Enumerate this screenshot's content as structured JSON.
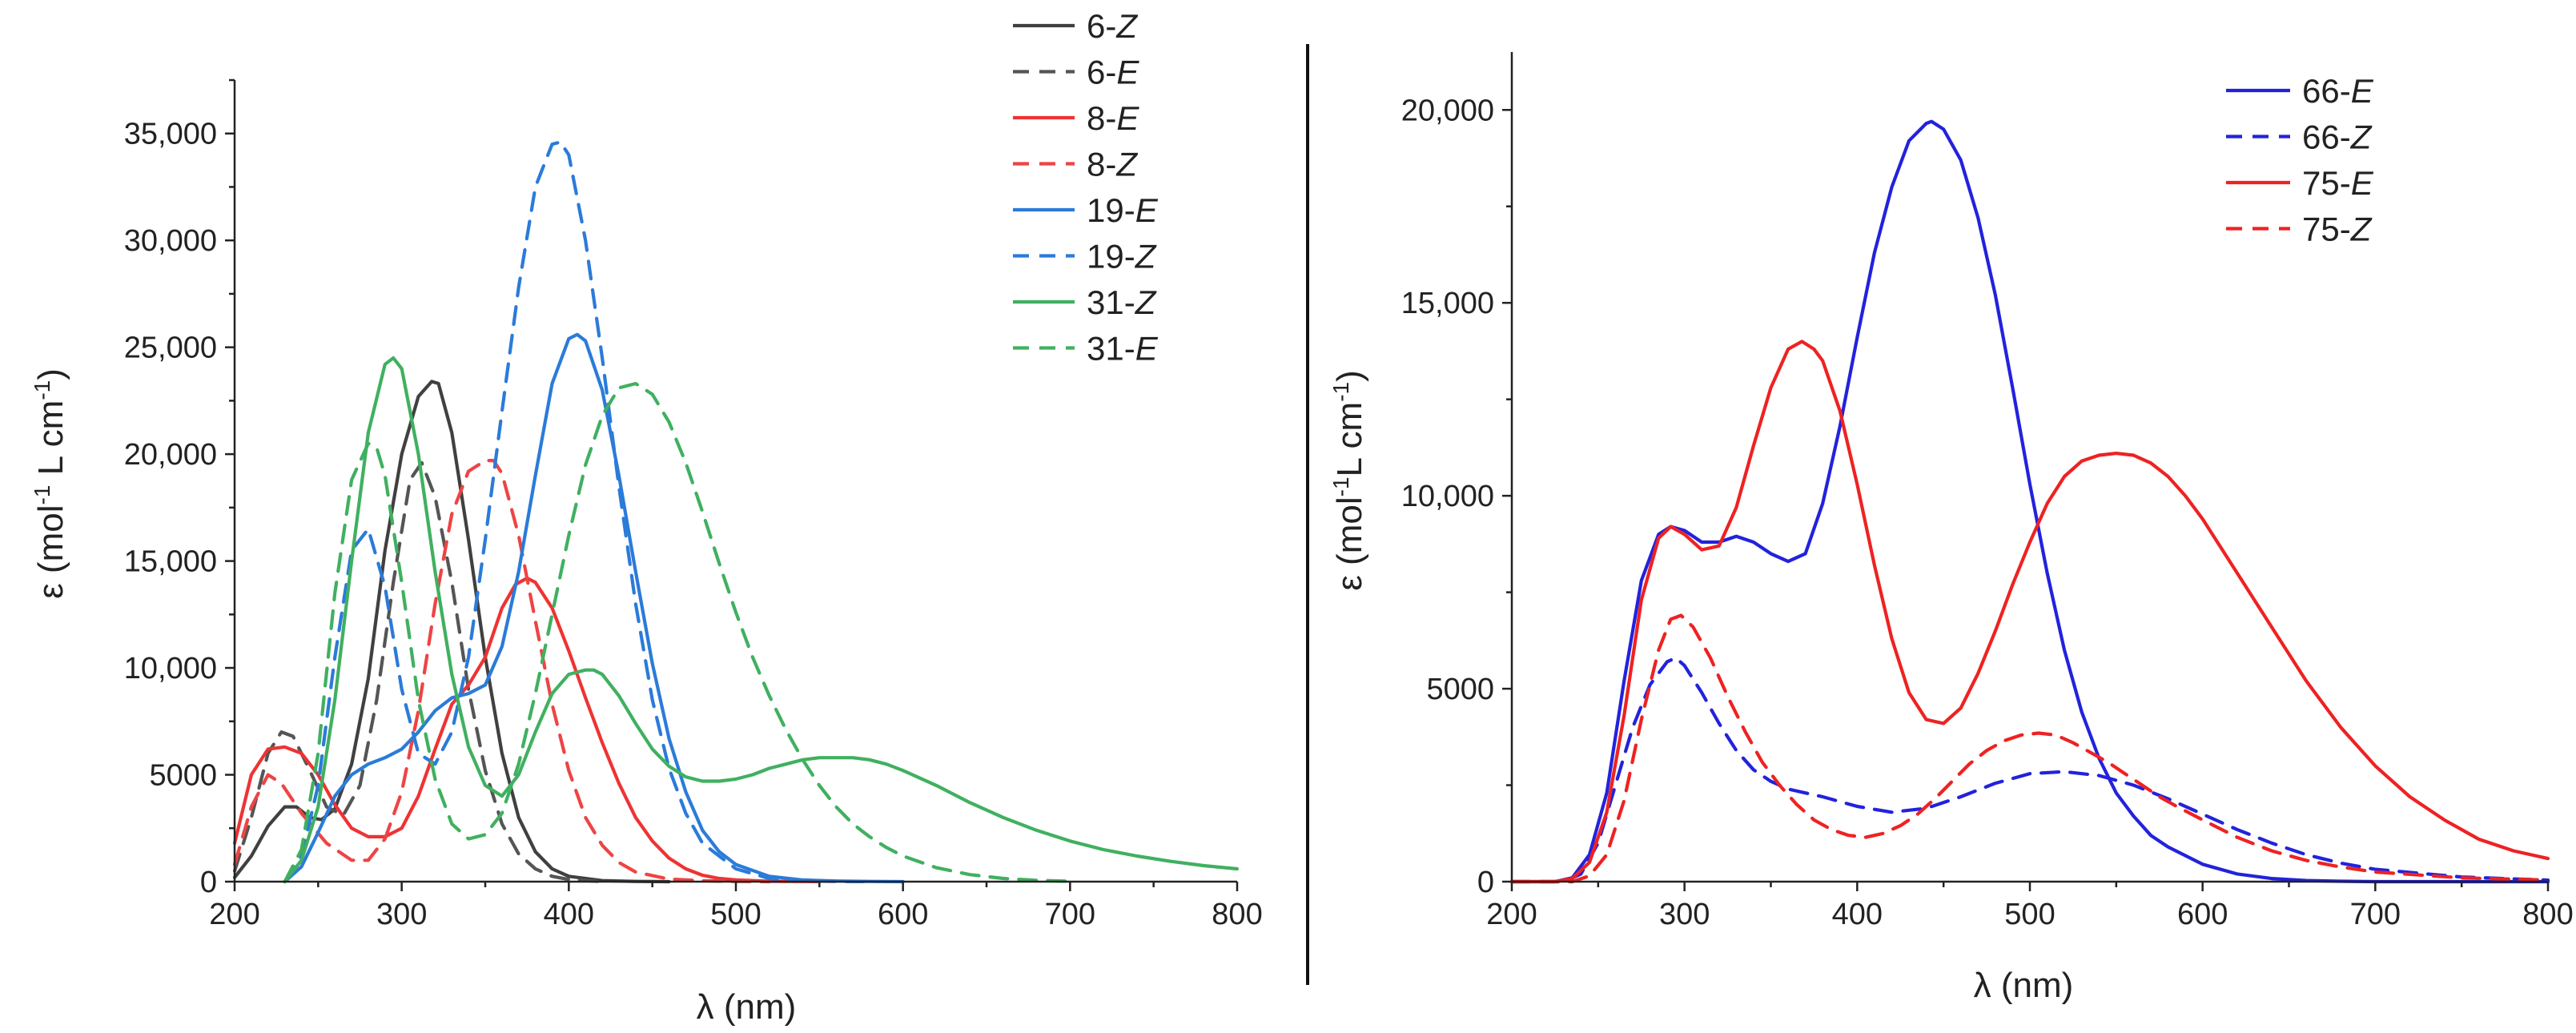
{
  "chart_data": [
    {
      "type": "line",
      "id": "left",
      "xlabel": "λ (nm)",
      "ylabel_parts": {
        "pre": "ε (mol",
        "sup1": "-1",
        "mid": " L cm",
        "sup2": "-1",
        "post": ")"
      },
      "xlim": [
        200,
        800
      ],
      "ylim": [
        0,
        37500
      ],
      "xticks": [
        200,
        300,
        400,
        500,
        600,
        700,
        800
      ],
      "xtick_labels": [
        "200",
        "300",
        "400",
        "500",
        "600",
        "700",
        "800"
      ],
      "yticks": [
        0,
        5000,
        10000,
        15000,
        20000,
        25000,
        30000,
        35000
      ],
      "ytick_labels": [
        "0",
        "5000",
        "10,000",
        "15,000",
        "20,000",
        "25,000",
        "30,000",
        "35,000"
      ],
      "series": [
        {
          "name": "6-Z",
          "num": "6-",
          "iso": "Z",
          "color": "#404040",
          "dash": "solid",
          "x": [
            200,
            210,
            220,
            230,
            237,
            245,
            252,
            260,
            270,
            280,
            290,
            300,
            310,
            318,
            322,
            330,
            340,
            350,
            360,
            370,
            380,
            390,
            400,
            420,
            440,
            460
          ],
          "y": [
            200,
            1200,
            2600,
            3500,
            3500,
            3000,
            2900,
            3400,
            5500,
            9500,
            15500,
            20000,
            22700,
            23400,
            23300,
            21000,
            16000,
            10500,
            6000,
            3000,
            1400,
            600,
            250,
            50,
            10,
            0
          ]
        },
        {
          "name": "6-E",
          "num": "6-",
          "iso": "E",
          "color": "#555555",
          "dash": "dashed",
          "x": [
            200,
            210,
            220,
            228,
            235,
            245,
            255,
            265,
            275,
            285,
            295,
            305,
            312,
            320,
            330,
            340,
            350,
            360,
            370,
            380,
            390,
            400,
            420
          ],
          "y": [
            500,
            3000,
            6000,
            7000,
            6800,
            5200,
            3500,
            3100,
            4500,
            8500,
            14000,
            18800,
            19600,
            18000,
            14000,
            9000,
            5200,
            2700,
            1300,
            600,
            250,
            100,
            0
          ]
        },
        {
          "name": "8-E",
          "num": "8-",
          "iso": "E",
          "color": "#ee3333",
          "dash": "solid",
          "x": [
            200,
            210,
            220,
            230,
            240,
            250,
            260,
            270,
            280,
            290,
            300,
            310,
            320,
            330,
            340,
            350,
            360,
            368,
            375,
            380,
            390,
            400,
            410,
            420,
            430,
            440,
            450,
            460,
            470,
            480,
            490,
            500,
            520,
            550
          ],
          "y": [
            1800,
            5000,
            6200,
            6300,
            6000,
            5000,
            3600,
            2500,
            2100,
            2100,
            2500,
            4000,
            6200,
            8300,
            9200,
            10500,
            12800,
            13900,
            14200,
            14000,
            12800,
            10800,
            8600,
            6500,
            4600,
            3000,
            1900,
            1100,
            600,
            300,
            150,
            80,
            20,
            0
          ]
        },
        {
          "name": "8-Z",
          "num": "8-",
          "iso": "Z",
          "color": "#ee4444",
          "dash": "dashed",
          "x": [
            200,
            210,
            220,
            228,
            240,
            255,
            270,
            280,
            290,
            300,
            310,
            320,
            330,
            340,
            350,
            355,
            360,
            370,
            380,
            390,
            400,
            410,
            420,
            430,
            440,
            460,
            480,
            500,
            520
          ],
          "y": [
            800,
            3500,
            5000,
            4600,
            3200,
            1800,
            1000,
            1000,
            2000,
            4200,
            8000,
            13000,
            17200,
            19200,
            19700,
            19700,
            19100,
            16200,
            12200,
            8300,
            5200,
            3000,
            1700,
            900,
            450,
            120,
            40,
            10,
            0
          ]
        },
        {
          "name": "19-E",
          "num": "19-",
          "iso": "E",
          "color": "#2b7bd9",
          "dash": "solid",
          "x": [
            230,
            240,
            250,
            260,
            270,
            280,
            290,
            300,
            310,
            320,
            330,
            340,
            350,
            360,
            370,
            380,
            390,
            400,
            405,
            410,
            420,
            430,
            440,
            450,
            460,
            470,
            480,
            490,
            500,
            520,
            540,
            560,
            580,
            600
          ],
          "y": [
            0,
            700,
            2300,
            4000,
            5000,
            5500,
            5800,
            6200,
            7000,
            8000,
            8600,
            8800,
            9200,
            11000,
            14500,
            19000,
            23300,
            25400,
            25600,
            25300,
            23000,
            19000,
            14500,
            10200,
            6700,
            4200,
            2400,
            1400,
            800,
            250,
            80,
            30,
            10,
            0
          ]
        },
        {
          "name": "19-Z",
          "num": "19-",
          "iso": "Z",
          "color": "#2b7bd9",
          "dash": "dashed",
          "x": [
            230,
            240,
            250,
            260,
            270,
            280,
            290,
            300,
            310,
            320,
            330,
            340,
            350,
            360,
            370,
            380,
            390,
            395,
            400,
            410,
            420,
            430,
            440,
            450,
            460,
            470,
            480,
            500,
            520,
            540,
            560,
            580
          ],
          "y": [
            0,
            1200,
            4500,
            10500,
            15500,
            16500,
            13800,
            9000,
            6000,
            5500,
            7000,
            10500,
            16000,
            22000,
            27800,
            32500,
            34500,
            34600,
            34000,
            30000,
            24500,
            18500,
            13000,
            8500,
            5300,
            3200,
            1800,
            600,
            150,
            40,
            10,
            0
          ]
        },
        {
          "name": "31-Z",
          "num": "31-",
          "iso": "Z",
          "color": "#40b060",
          "dash": "solid",
          "x": [
            230,
            240,
            250,
            260,
            270,
            280,
            290,
            295,
            300,
            310,
            320,
            330,
            340,
            350,
            360,
            370,
            380,
            390,
            400,
            410,
            415,
            420,
            430,
            440,
            450,
            460,
            470,
            480,
            490,
            500,
            510,
            520,
            530,
            540,
            550,
            560,
            570,
            580,
            590,
            600,
            620,
            640,
            660,
            680,
            700,
            720,
            740,
            760,
            780,
            800
          ],
          "y": [
            0,
            1000,
            3500,
            8500,
            15000,
            21000,
            24200,
            24500,
            24000,
            20000,
            14500,
            9700,
            6300,
            4500,
            4000,
            5000,
            7000,
            8800,
            9700,
            9900,
            9900,
            9700,
            8700,
            7400,
            6200,
            5400,
            4900,
            4700,
            4700,
            4800,
            5000,
            5300,
            5500,
            5700,
            5800,
            5800,
            5800,
            5700,
            5500,
            5200,
            4500,
            3700,
            3000,
            2400,
            1900,
            1500,
            1200,
            950,
            750,
            600
          ]
        },
        {
          "name": "31-E",
          "num": "31-",
          "iso": "E",
          "color": "#40b060",
          "dash": "dashed",
          "x": [
            230,
            240,
            250,
            260,
            270,
            280,
            285,
            290,
            300,
            310,
            320,
            330,
            340,
            350,
            360,
            370,
            380,
            390,
            400,
            410,
            420,
            430,
            440,
            450,
            460,
            470,
            480,
            490,
            500,
            510,
            520,
            530,
            540,
            550,
            560,
            570,
            580,
            590,
            600,
            620,
            640,
            660,
            680,
            700
          ],
          "y": [
            0,
            1500,
            6000,
            13500,
            18800,
            20500,
            20300,
            19000,
            14000,
            8500,
            4800,
            2700,
            2000,
            2200,
            3200,
            5500,
            8800,
            12500,
            16200,
            19500,
            21800,
            23100,
            23300,
            22800,
            21500,
            19600,
            17300,
            14900,
            12600,
            10500,
            8700,
            7100,
            5700,
            4500,
            3500,
            2700,
            2100,
            1600,
            1200,
            650,
            330,
            150,
            60,
            20
          ]
        }
      ]
    },
    {
      "type": "line",
      "id": "right",
      "xlabel": "λ (nm)",
      "ylabel_parts": {
        "pre": "ε (mol",
        "sup1": "-1",
        "mid": "L cm",
        "sup2": "-1",
        "post": ")"
      },
      "xlim": [
        200,
        800
      ],
      "ylim": [
        0,
        21500
      ],
      "xticks": [
        200,
        300,
        400,
        500,
        600,
        700,
        800
      ],
      "xtick_labels": [
        "200",
        "300",
        "400",
        "500",
        "600",
        "700",
        "800"
      ],
      "yticks": [
        0,
        5000,
        10000,
        15000,
        20000
      ],
      "ytick_labels": [
        "0",
        "5000",
        "10,000",
        "15,000",
        "20,000"
      ],
      "series": [
        {
          "name": "66-E",
          "num": "66-",
          "iso": "E",
          "color": "#2222dd",
          "dash": "solid",
          "x": [
            200,
            225,
            235,
            245,
            255,
            265,
            275,
            285,
            292,
            300,
            310,
            320,
            330,
            340,
            350,
            360,
            370,
            380,
            390,
            400,
            410,
            420,
            430,
            440,
            443,
            450,
            460,
            470,
            480,
            490,
            500,
            510,
            520,
            530,
            540,
            550,
            560,
            570,
            580,
            600,
            620,
            640,
            660,
            680,
            700,
            750,
            800
          ],
          "y": [
            0,
            0,
            100,
            700,
            2300,
            5200,
            7800,
            9000,
            9200,
            9100,
            8800,
            8800,
            8950,
            8800,
            8500,
            8300,
            8500,
            9800,
            11800,
            14100,
            16300,
            18000,
            19200,
            19650,
            19700,
            19500,
            18700,
            17200,
            15200,
            12800,
            10300,
            8000,
            6000,
            4400,
            3200,
            2300,
            1700,
            1200,
            900,
            450,
            200,
            80,
            30,
            10,
            0,
            0,
            0
          ]
        },
        {
          "name": "66-Z",
          "num": "66-",
          "iso": "Z",
          "color": "#2222dd",
          "dash": "dashed",
          "x": [
            200,
            230,
            240,
            250,
            260,
            270,
            280,
            290,
            295,
            300,
            310,
            320,
            330,
            340,
            350,
            360,
            380,
            400,
            420,
            440,
            460,
            480,
            500,
            520,
            540,
            560,
            580,
            600,
            620,
            640,
            660,
            680,
            700,
            750,
            800
          ],
          "y": [
            0,
            0,
            200,
            1000,
            2500,
            4000,
            5100,
            5700,
            5800,
            5600,
            4900,
            4100,
            3400,
            2900,
            2600,
            2400,
            2200,
            1950,
            1800,
            1900,
            2200,
            2550,
            2800,
            2850,
            2750,
            2500,
            2150,
            1750,
            1350,
            1000,
            700,
            480,
            320,
            120,
            40
          ]
        },
        {
          "name": "75-E",
          "num": "75-",
          "iso": "E",
          "color": "#ee2222",
          "dash": "solid",
          "x": [
            200,
            225,
            235,
            245,
            255,
            265,
            275,
            285,
            292,
            300,
            310,
            320,
            330,
            340,
            350,
            360,
            368,
            375,
            380,
            390,
            400,
            410,
            420,
            430,
            440,
            450,
            460,
            470,
            480,
            490,
            500,
            510,
            520,
            530,
            540,
            550,
            560,
            570,
            580,
            590,
            600,
            620,
            640,
            660,
            680,
            700,
            720,
            740,
            760,
            780,
            800
          ],
          "y": [
            0,
            0,
            80,
            500,
            1800,
            4300,
            7300,
            8900,
            9200,
            9000,
            8600,
            8700,
            9700,
            11300,
            12800,
            13800,
            14000,
            13800,
            13500,
            12200,
            10300,
            8200,
            6300,
            4900,
            4200,
            4100,
            4500,
            5400,
            6500,
            7700,
            8800,
            9800,
            10500,
            10900,
            11050,
            11100,
            11050,
            10850,
            10500,
            10000,
            9400,
            8000,
            6600,
            5200,
            4000,
            3000,
            2200,
            1600,
            1100,
            800,
            600
          ]
        },
        {
          "name": "75-Z",
          "num": "75-",
          "iso": "Z",
          "color": "#ee2222",
          "dash": "dashed",
          "x": [
            200,
            235,
            245,
            255,
            265,
            275,
            285,
            292,
            298,
            305,
            315,
            325,
            335,
            345,
            355,
            365,
            375,
            385,
            395,
            405,
            415,
            425,
            435,
            445,
            455,
            465,
            475,
            485,
            495,
            505,
            515,
            525,
            535,
            545,
            555,
            565,
            575,
            585,
            600,
            620,
            640,
            660,
            680,
            700,
            750,
            800
          ],
          "y": [
            0,
            0,
            150,
            700,
            2100,
            4200,
            6000,
            6800,
            6900,
            6600,
            5800,
            4800,
            3900,
            3100,
            2500,
            2000,
            1600,
            1350,
            1200,
            1150,
            1250,
            1450,
            1750,
            2150,
            2600,
            3050,
            3400,
            3650,
            3800,
            3850,
            3800,
            3600,
            3350,
            3100,
            2800,
            2500,
            2200,
            1950,
            1600,
            1150,
            800,
            550,
            380,
            250,
            100,
            40
          ]
        }
      ]
    }
  ]
}
